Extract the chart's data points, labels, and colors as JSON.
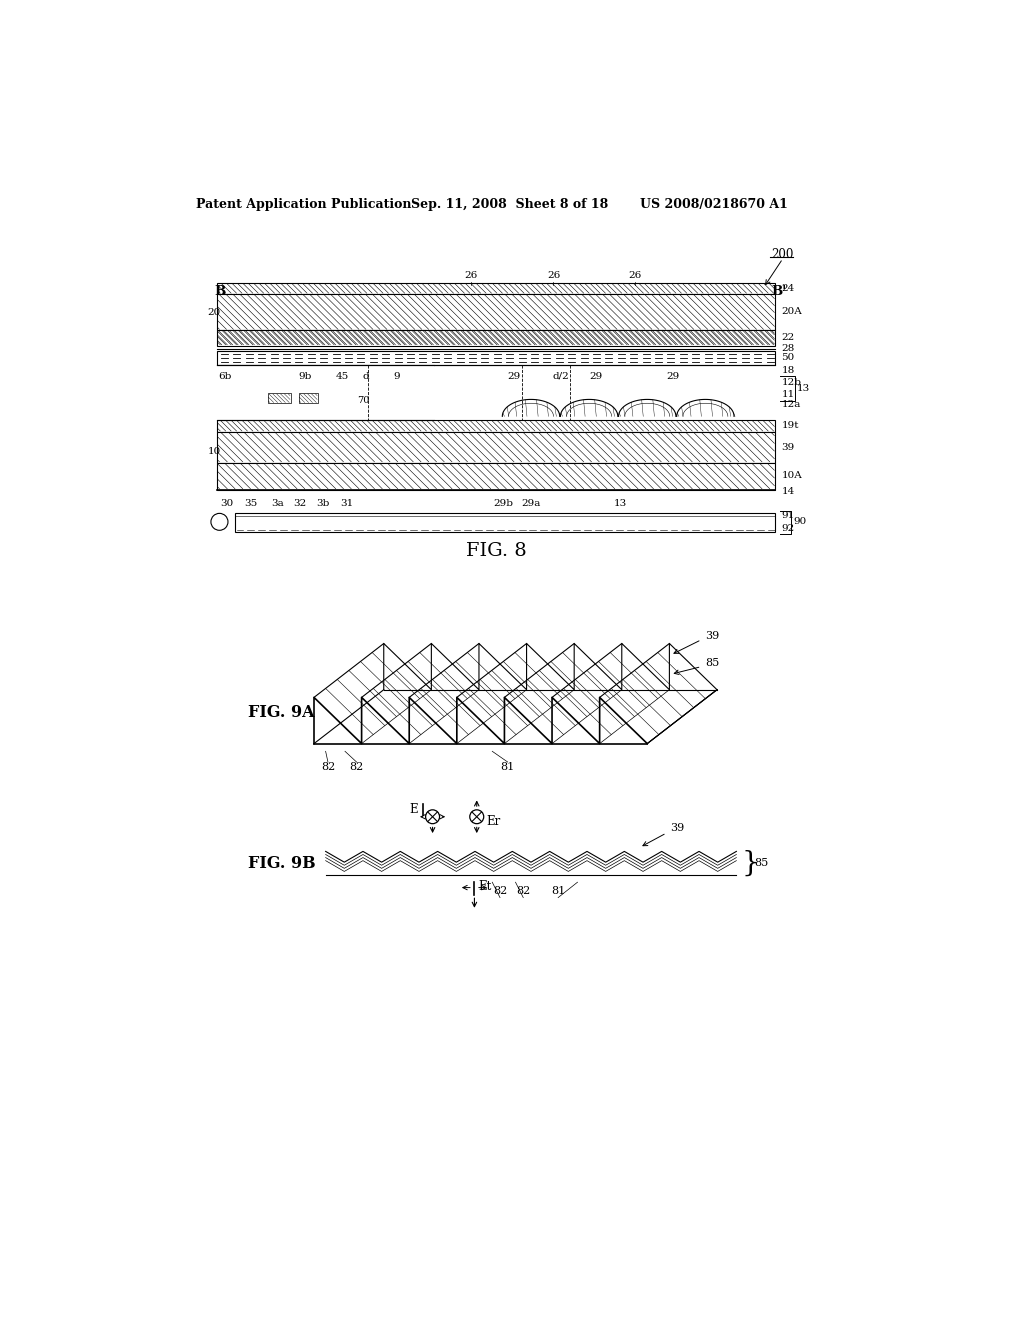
{
  "bg_color": "#ffffff",
  "header_text": "Patent Application Publication",
  "header_date": "Sep. 11, 2008  Sheet 8 of 18",
  "header_patent": "US 2008/0218670 A1",
  "fig8_label": "FIG. 8",
  "fig9a_label": "FIG. 9A",
  "fig9b_label": "FIG. 9B",
  "line_color": "#000000",
  "hatch_color": "#000000"
}
